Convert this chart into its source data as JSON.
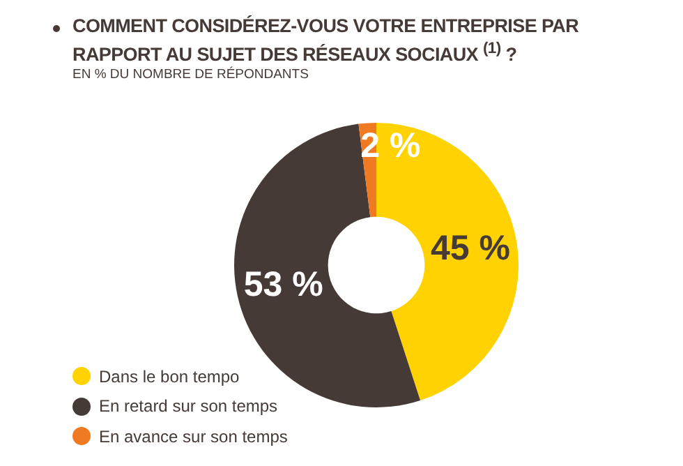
{
  "chart_data": {
    "type": "donut",
    "title": "COMMENT CONSIDÉREZ-VOUS VOTRE ENTREPRISE PAR RAPPORT AU SUJET DES RÉSEAUX SOCIAUX $^{(1)}$ ?",
    "subtitle": "EN % DU NOMBRE DE RÉPONDANTS",
    "categories": [
      "Dans le bon tempo",
      "En retard sur son temps",
      "En avance sur son temps"
    ],
    "values": [
      45,
      53,
      2
    ],
    "value_labels": [
      "45 %",
      "53 %",
      "2 %"
    ],
    "colors": [
      "#ffd200",
      "#463a37",
      "#f07a22"
    ],
    "legend": "bottom left"
  }
}
